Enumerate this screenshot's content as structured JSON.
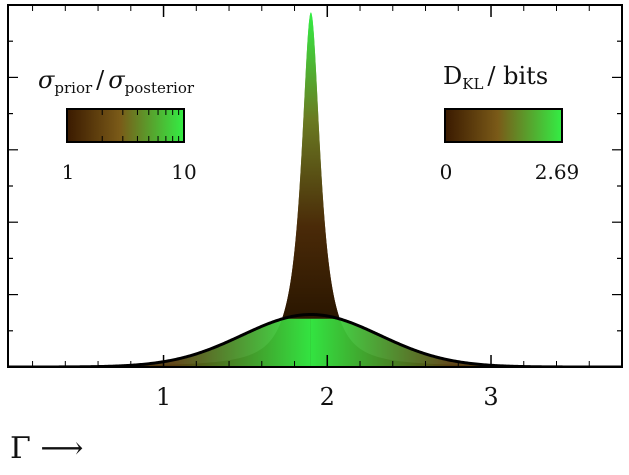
{
  "chart_data": {
    "type": "area",
    "title": "",
    "xlabel": "Γ ⟶",
    "ylabel": "",
    "xlim": [
      0.05,
      3.8
    ],
    "ylim": [
      0,
      1.0
    ],
    "x_ticks": [
      1,
      2,
      3
    ],
    "x_tick_labels": [
      "1",
      "2",
      "3"
    ],
    "grid": false,
    "series": [
      {
        "role": "posterior",
        "peak_x": 1.9,
        "peak_y": 0.98,
        "shape": "sharp Lorentzian-like peak",
        "half_width": 0.07,
        "fill": "color gradient (brown to green) encoding Dkl"
      },
      {
        "role": "prior",
        "center_x": 1.9,
        "peak_y": 0.145,
        "shape": "broad Gaussian",
        "sigma": 0.42,
        "stroke": "#000000"
      }
    ],
    "colorbars": [
      {
        "label_main": "σ",
        "label_sub1": "prior",
        "label_slash": "/",
        "label_main2": "σ",
        "label_sub2": "posterior",
        "min_label": "1",
        "max_label": "10",
        "scale": "log",
        "colors": [
          "#3a1a00",
          "#7a5a18",
          "#33ee44"
        ]
      },
      {
        "label_main": "D",
        "label_sub": "KL",
        "label_unit": "/ bits",
        "min_label": "0",
        "max_label": "2.69",
        "scale": "linear",
        "colors": [
          "#3a1a00",
          "#7a5a18",
          "#33ee44"
        ]
      }
    ],
    "legend_placement": "top (inside axes)"
  }
}
